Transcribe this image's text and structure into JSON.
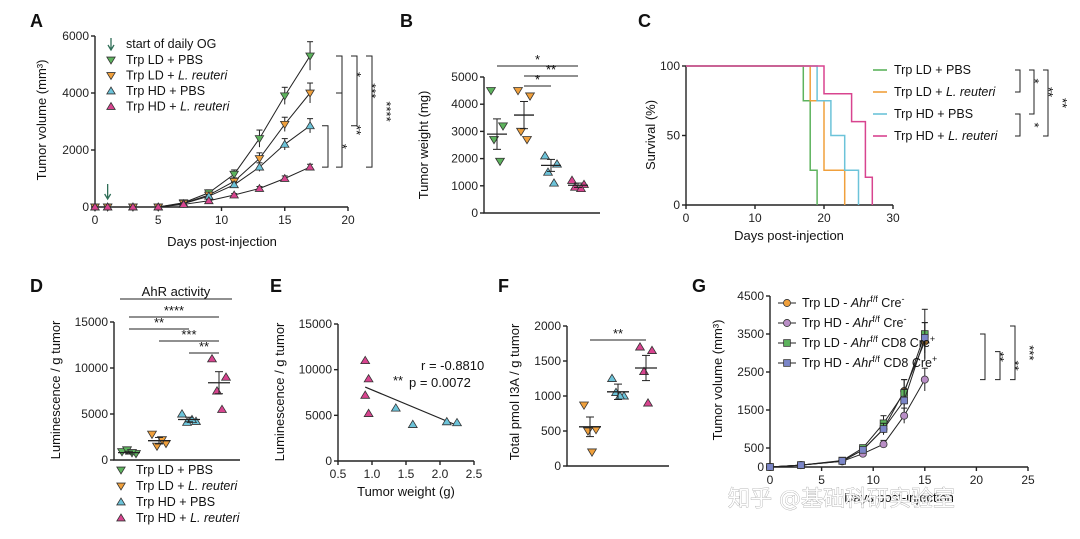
{
  "colors": {
    "trp_ld_pbs": "#5db35d",
    "trp_ld_reuteri": "#f0a03c",
    "trp_hd_pbs": "#6cc3d9",
    "trp_hd_reuteri": "#d8448f",
    "g_orange": "#f0a03c",
    "g_purple": "#b98ec6",
    "g_green": "#5db35d",
    "g_blue": "#7b86c8"
  },
  "watermark": "知乎 @基础科研实验室",
  "chart_data": [
    {
      "panel": "A",
      "type": "line",
      "xlabel": "Days post-injection",
      "ylabel": "Tumor volume (mm³)",
      "xlim": [
        0,
        20
      ],
      "ylim": [
        0,
        6000
      ],
      "xticks": [
        "0",
        "5",
        "10",
        "15",
        "20"
      ],
      "yticks": [
        "0",
        "2000",
        "4000",
        "6000"
      ],
      "annotation": "start of daily OG",
      "annotation_day": 1,
      "x": [
        0,
        1,
        3,
        5,
        7,
        9,
        11,
        13,
        15,
        17
      ],
      "series": [
        {
          "name": "Trp LD + PBS",
          "label_plain": "Trp LD + PBS",
          "marker": "tri-down",
          "color": "#5db35d",
          "values": [
            0,
            0,
            0,
            0,
            150,
            500,
            1150,
            2400,
            3900,
            5300
          ],
          "err": [
            0,
            0,
            0,
            0,
            40,
            100,
            150,
            300,
            300,
            500
          ]
        },
        {
          "name": "Trp LD + L. reuteri",
          "label_plain": "Trp LD + ",
          "label_italic": "L. reuteri",
          "marker": "tri-down",
          "color": "#f0a03c",
          "values": [
            0,
            0,
            0,
            0,
            130,
            420,
            900,
            1700,
            2900,
            4000
          ],
          "err": [
            0,
            0,
            0,
            0,
            40,
            80,
            120,
            200,
            250,
            350
          ]
        },
        {
          "name": "Trp HD + PBS",
          "label_plain": "Trp HD + PBS",
          "marker": "tri-up",
          "color": "#6cc3d9",
          "values": [
            0,
            0,
            0,
            0,
            120,
            380,
            780,
            1400,
            2200,
            2850
          ],
          "err": [
            0,
            0,
            0,
            0,
            30,
            60,
            100,
            150,
            200,
            250
          ]
        },
        {
          "name": "Trp HD + L. reuteri",
          "label_plain": "Trp HD + ",
          "label_italic": "L. reuteri",
          "marker": "tri-up",
          "color": "#d8448f",
          "values": [
            0,
            0,
            0,
            0,
            90,
            220,
            420,
            650,
            1000,
            1400
          ],
          "err": [
            0,
            0,
            0,
            0,
            20,
            40,
            50,
            70,
            90,
            100
          ]
        }
      ],
      "significance": [
        "*",
        "***",
        "****",
        "**",
        "*"
      ]
    },
    {
      "panel": "B",
      "type": "scatter",
      "ylabel": "Tumor weight (mg)",
      "ylim": [
        0,
        5000
      ],
      "yticks": [
        "0",
        "1000",
        "2000",
        "3000",
        "4000",
        "5000"
      ],
      "groups": [
        {
          "name": "Trp LD + PBS",
          "marker": "tri-down",
          "color": "#5db35d",
          "points": [
            4500,
            3200,
            2700,
            1900
          ],
          "mean": 2900,
          "sem": 560
        },
        {
          "name": "Trp LD + L. reuteri",
          "marker": "tri-down",
          "color": "#f0a03c",
          "points": [
            4500,
            4300,
            3000,
            2700
          ],
          "mean": 3600,
          "sem": 500
        },
        {
          "name": "Trp HD + PBS",
          "marker": "tri-up",
          "color": "#6cc3d9",
          "points": [
            2100,
            1800,
            1500,
            1100
          ],
          "mean": 1750,
          "sem": 220
        },
        {
          "name": "Trp HD + L. reuteri",
          "marker": "tri-up",
          "color": "#d8448f",
          "points": [
            1200,
            1050,
            950,
            900
          ],
          "mean": 1020,
          "sem": 80
        }
      ],
      "significance": [
        "*",
        "**",
        "*"
      ]
    },
    {
      "panel": "C",
      "type": "line",
      "xlabel": "Days post-injection",
      "ylabel": "Survival (%)",
      "xlim": [
        0,
        30
      ],
      "ylim": [
        0,
        100
      ],
      "xticks": [
        "0",
        "10",
        "20",
        "30"
      ],
      "yticks": [
        "0",
        "50",
        "100"
      ],
      "series": [
        {
          "name": "Trp LD + PBS",
          "label_plain": "Trp LD + PBS",
          "color": "#5db35d",
          "steps": [
            [
              0,
              100
            ],
            [
              17,
              100
            ],
            [
              17,
              75
            ],
            [
              18,
              75
            ],
            [
              18,
              25
            ],
            [
              19,
              25
            ],
            [
              19,
              0
            ]
          ]
        },
        {
          "name": "Trp LD + L. reuteri",
          "label_plain": "Trp LD + ",
          "label_italic": "L. reuteri",
          "color": "#f0a03c",
          "steps": [
            [
              0,
              100
            ],
            [
              18,
              100
            ],
            [
              18,
              75
            ],
            [
              20,
              75
            ],
            [
              20,
              25
            ],
            [
              23,
              25
            ],
            [
              23,
              0
            ]
          ]
        },
        {
          "name": "Trp HD + PBS",
          "label_plain": "Trp HD + PBS",
          "color": "#6cc3d9",
          "steps": [
            [
              0,
              100
            ],
            [
              19,
              100
            ],
            [
              19,
              75
            ],
            [
              21,
              75
            ],
            [
              21,
              50
            ],
            [
              23,
              50
            ],
            [
              23,
              25
            ],
            [
              25,
              25
            ],
            [
              25,
              0
            ]
          ]
        },
        {
          "name": "Trp HD + L. reuteri",
          "label_plain": "Trp HD + ",
          "label_italic": "L. reuteri",
          "color": "#d8448f",
          "steps": [
            [
              0,
              100
            ],
            [
              20,
              100
            ],
            [
              20,
              80
            ],
            [
              24,
              80
            ],
            [
              24,
              60
            ],
            [
              26,
              60
            ],
            [
              26,
              20
            ],
            [
              27,
              20
            ],
            [
              27,
              0
            ]
          ]
        }
      ],
      "significance": [
        "*",
        "**",
        "*",
        "**"
      ]
    },
    {
      "panel": "D",
      "type": "scatter",
      "title": "AhR activity",
      "ylabel": "Luminescence / g tumor",
      "ylim": [
        0,
        15000
      ],
      "yticks": [
        "0",
        "5000",
        "10000",
        "15000"
      ],
      "groups": [
        {
          "name": "Trp LD + PBS",
          "label_plain": "Trp LD + PBS",
          "marker": "tri-down",
          "color": "#5db35d",
          "points": [
            900,
            700,
            1100,
            800
          ],
          "mean": 800,
          "sem": 150
        },
        {
          "name": "Trp LD + L. reuteri",
          "label_plain": "Trp LD + ",
          "label_italic": "L. reuteri",
          "marker": "tri-down",
          "color": "#f0a03c",
          "points": [
            2800,
            1800,
            1500,
            2200
          ],
          "mean": 2100,
          "sem": 350
        },
        {
          "name": "Trp HD + PBS",
          "label_plain": "Trp HD + PBS",
          "marker": "tri-up",
          "color": "#6cc3d9",
          "points": [
            5000,
            4200,
            4100,
            4400
          ],
          "mean": 4400,
          "sem": 250
        },
        {
          "name": "Trp HD + L. reuteri",
          "label_plain": "Trp HD + ",
          "label_italic": "L. reuteri",
          "marker": "tri-up",
          "color": "#d8448f",
          "points": [
            11000,
            9000,
            7500,
            5500
          ],
          "mean": 8400,
          "sem": 1200
        }
      ],
      "significance": [
        "****",
        "**",
        "***",
        "**"
      ]
    },
    {
      "panel": "E",
      "type": "scatter",
      "xlabel": "Tumor weight (g)",
      "ylabel": "Luminescence / g tumor",
      "xlim": [
        0.5,
        2.5
      ],
      "ylim": [
        0,
        15000
      ],
      "xticks": [
        "0.5",
        "1.0",
        "1.5",
        "2.0",
        "2.5"
      ],
      "yticks": [
        "0",
        "5000",
        "10000",
        "15000"
      ],
      "r_text": "r = -0.8810",
      "p_text": "p = 0.0072",
      "stars": "**",
      "points": [
        {
          "x": 0.9,
          "y": 11000,
          "color": "#d8448f"
        },
        {
          "x": 0.95,
          "y": 9000,
          "color": "#d8448f"
        },
        {
          "x": 0.9,
          "y": 7200,
          "color": "#d8448f"
        },
        {
          "x": 0.95,
          "y": 5200,
          "color": "#d8448f"
        },
        {
          "x": 1.35,
          "y": 5800,
          "color": "#6cc3d9"
        },
        {
          "x": 1.6,
          "y": 4000,
          "color": "#6cc3d9"
        },
        {
          "x": 2.1,
          "y": 4300,
          "color": "#6cc3d9"
        },
        {
          "x": 2.25,
          "y": 4200,
          "color": "#6cc3d9"
        }
      ],
      "fit": [
        [
          0.9,
          8100
        ],
        [
          2.25,
          3900
        ]
      ]
    },
    {
      "panel": "F",
      "type": "scatter",
      "ylabel": "Total pmol I3A / g tumor",
      "ylim": [
        0,
        2000
      ],
      "yticks": [
        "0",
        "500",
        "1000",
        "1500",
        "2000"
      ],
      "groups": [
        {
          "name": "Trp LD + L. reuteri",
          "marker": "tri-down",
          "color": "#f0a03c",
          "points": [
            870,
            520,
            500,
            200
          ],
          "mean": 560,
          "sem": 140
        },
        {
          "name": "Trp HD + PBS",
          "marker": "tri-up",
          "color": "#6cc3d9",
          "points": [
            1250,
            1000,
            1050,
            1000
          ],
          "mean": 1060,
          "sem": 110
        },
        {
          "name": "Trp HD + L. reuteri",
          "marker": "tri-up",
          "color": "#d8448f",
          "points": [
            1700,
            1650,
            1350,
            900
          ],
          "mean": 1400,
          "sem": 180
        }
      ],
      "significance": [
        "**"
      ]
    },
    {
      "panel": "G",
      "type": "line",
      "xlabel": "Days post-injection",
      "ylabel": "Tumor volume (mm³)",
      "xlim": [
        0,
        25
      ],
      "ylim": [
        0,
        4500
      ],
      "xticks": [
        "0",
        "5",
        "10",
        "15",
        "20",
        "25"
      ],
      "yticks": [
        "0",
        "500",
        "1500",
        "2500",
        "3500",
        "4500"
      ],
      "x": [
        0,
        3,
        7,
        9,
        11,
        13,
        15
      ],
      "series": [
        {
          "name": "Trp LD - Ahr f/f Cre-",
          "p1": "Trp LD - ",
          "it": "Ahr",
          "sup": "f/f",
          "p2": " Cre",
          "sup2": "-",
          "marker": "circle",
          "color": "#f0a03c",
          "values": [
            0,
            50,
            150,
            450,
            1000,
            2000,
            3300
          ],
          "err": [
            0,
            10,
            30,
            80,
            150,
            300,
            500
          ]
        },
        {
          "name": "Trp HD - Ahr f/f Cre-",
          "p1": "Trp HD - ",
          "it": "Ahr",
          "sup": "f/f",
          "p2": " Cre",
          "sup2": "-",
          "marker": "circle",
          "color": "#b98ec6",
          "values": [
            0,
            50,
            150,
            350,
            600,
            1350,
            2300
          ],
          "err": [
            0,
            10,
            30,
            60,
            100,
            200,
            300
          ]
        },
        {
          "name": "Trp LD - Ahr f/f CD8 Cre+",
          "p1": "Trp LD - ",
          "it": "Ahr",
          "sup": "f/f",
          "p2": " CD8 Cre",
          "sup2": "+",
          "marker": "square",
          "color": "#5db35d",
          "values": [
            0,
            50,
            170,
            500,
            1150,
            1950,
            3500
          ],
          "err": [
            0,
            10,
            30,
            80,
            200,
            350,
            650
          ]
        },
        {
          "name": "Trp HD - Ahr f/f CD8 Cre+",
          "p1": "Trp HD - ",
          "it": "Ahr",
          "sup": "f/f",
          "p2": " CD8 Cre",
          "sup2": "+",
          "marker": "square",
          "color": "#7b86c8",
          "values": [
            0,
            50,
            160,
            450,
            1000,
            1750,
            3400
          ],
          "err": [
            0,
            10,
            30,
            70,
            150,
            300,
            400
          ]
        }
      ],
      "significance": [
        "**",
        "**",
        "***"
      ]
    }
  ]
}
